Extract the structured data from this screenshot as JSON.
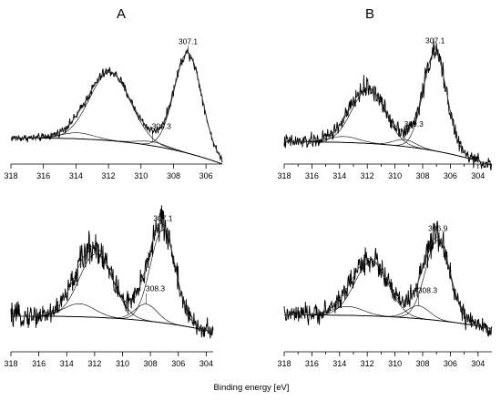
{
  "figure": {
    "column_labels": [
      "A",
      "B"
    ],
    "xlabel": "Binding energy [eV]"
  },
  "chart_data": [
    {
      "type": "line",
      "panel": "A-top",
      "xlim": [
        318,
        305
      ],
      "x_ticks": [
        318,
        316,
        314,
        312,
        310,
        308,
        306
      ],
      "xlabel": "",
      "ylabel": "",
      "peaks": [
        {
          "center": 307.1,
          "height": 1.0,
          "width": 0.85,
          "labeled": true,
          "label": "307.1"
        },
        {
          "center": 311.9,
          "height": 0.68,
          "width": 1.25,
          "labeled": false,
          "label": ""
        },
        {
          "center": 309.3,
          "height": 0.04,
          "width": 0.9,
          "labeled": true,
          "label": "309.3"
        },
        {
          "center": 313.9,
          "height": 0.06,
          "width": 1.0,
          "labeled": false,
          "label": ""
        }
      ],
      "noise": 0.022,
      "baseline": {
        "left": 0.06,
        "right": -0.2
      }
    },
    {
      "type": "line",
      "panel": "B-top",
      "xlim": [
        318,
        303
      ],
      "x_ticks": [
        318,
        317,
        316,
        315,
        314,
        313,
        312,
        311,
        310,
        309,
        308,
        307,
        306,
        305,
        304
      ],
      "tick_labels": [
        318,
        316,
        314,
        312,
        310,
        308,
        306,
        304
      ],
      "xlabel": "",
      "ylabel": "",
      "peaks": [
        {
          "center": 307.1,
          "height": 1.0,
          "width": 0.85,
          "labeled": true,
          "label": "307.1"
        },
        {
          "center": 311.9,
          "height": 0.55,
          "width": 1.2,
          "labeled": false,
          "label": ""
        },
        {
          "center": 309.3,
          "height": 0.07,
          "width": 0.8,
          "labeled": true,
          "label": "309.3"
        },
        {
          "center": 313.7,
          "height": 0.06,
          "width": 1.1,
          "labeled": false,
          "label": ""
        }
      ],
      "noise": 0.045,
      "baseline": {
        "left": 0.04,
        "right": -0.2
      }
    },
    {
      "type": "line",
      "panel": "A-bottom",
      "xlim": [
        318,
        303.5
      ],
      "x_ticks": [
        318,
        316,
        314,
        312,
        310,
        308,
        306,
        304
      ],
      "xlabel": "",
      "ylabel": "",
      "peaks": [
        {
          "center": 307.1,
          "height": 1.0,
          "width": 0.9,
          "labeled": true,
          "label": "307.1"
        },
        {
          "center": 311.9,
          "height": 0.68,
          "width": 1.2,
          "labeled": false,
          "label": ""
        },
        {
          "center": 308.3,
          "height": 0.18,
          "width": 0.8,
          "labeled": true,
          "label": "308.3"
        },
        {
          "center": 313.1,
          "height": 0.14,
          "width": 1.1,
          "labeled": false,
          "label": ""
        }
      ],
      "noise": 0.07,
      "baseline": {
        "left": 0.05,
        "right": -0.12
      }
    },
    {
      "type": "line",
      "panel": "B-bottom",
      "xlim": [
        318,
        303
      ],
      "x_ticks": [
        318,
        317,
        316,
        315,
        314,
        313,
        312,
        311,
        310,
        309,
        308,
        307,
        306,
        305,
        304
      ],
      "tick_labels": [
        318,
        316,
        314,
        312,
        310,
        308,
        306,
        304
      ],
      "xlabel": "",
      "ylabel": "",
      "peaks": [
        {
          "center": 306.9,
          "height": 1.0,
          "width": 0.9,
          "labeled": true,
          "label": "306.9"
        },
        {
          "center": 311.7,
          "height": 0.68,
          "width": 1.2,
          "labeled": false,
          "label": ""
        },
        {
          "center": 308.3,
          "height": 0.16,
          "width": 0.8,
          "labeled": true,
          "label": "308.3"
        },
        {
          "center": 313.4,
          "height": 0.11,
          "width": 1.1,
          "labeled": false,
          "label": ""
        }
      ],
      "noise": 0.07,
      "baseline": {
        "left": 0.05,
        "right": -0.12
      }
    }
  ]
}
